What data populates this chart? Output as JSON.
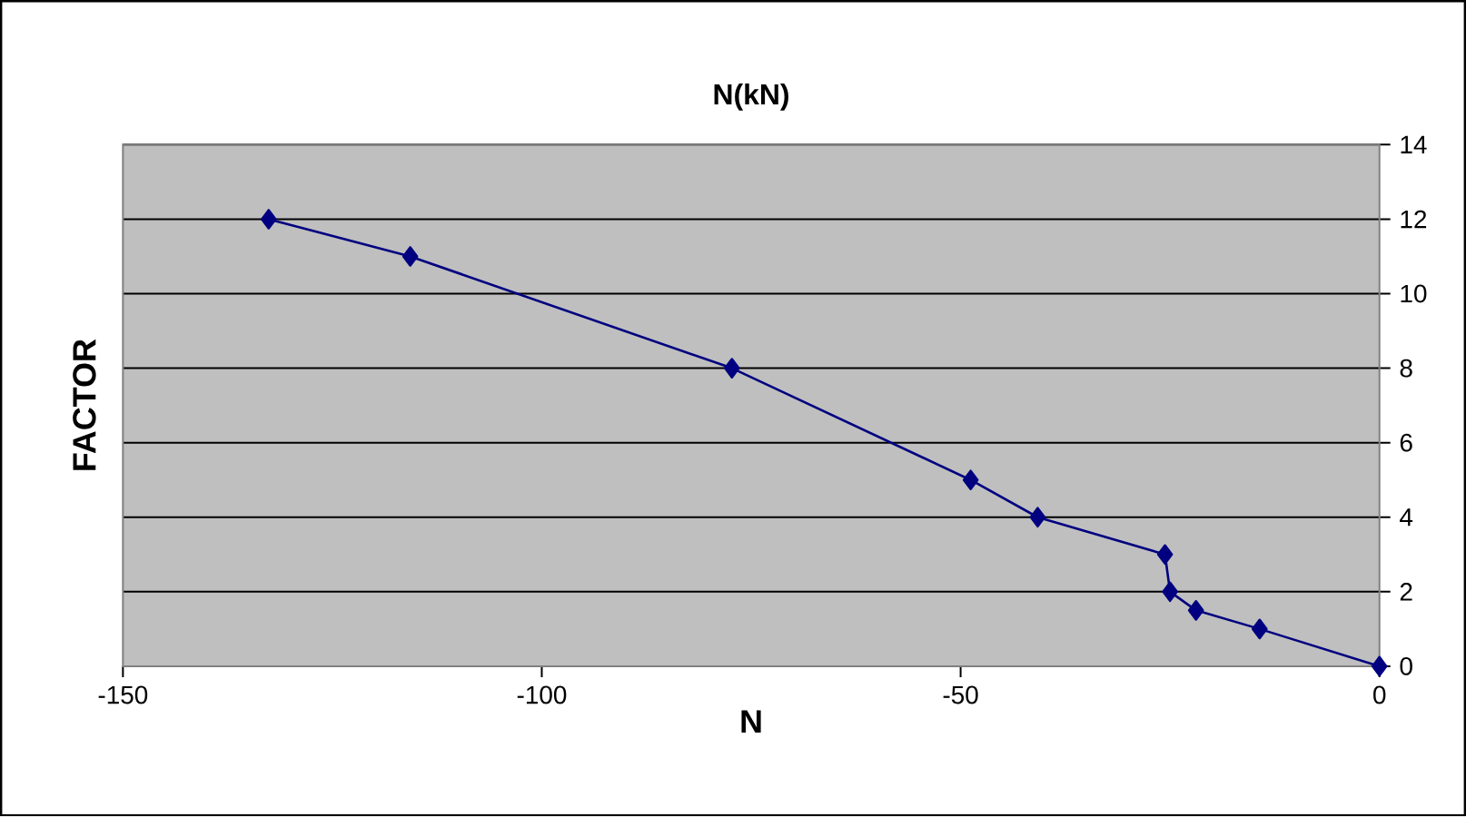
{
  "chart_data": {
    "type": "line",
    "title": "N(kN)",
    "xlabel": "N",
    "ylabel": "FACTOR",
    "x": [
      -132.6,
      -115.7,
      -77.3,
      -48.8,
      -40.8,
      -25.6,
      -25.0,
      -21.9,
      -14.3,
      0
    ],
    "values": [
      12,
      11,
      8,
      5,
      4,
      3,
      2,
      1.5,
      1,
      0
    ],
    "color": "#000080",
    "marker": "diamond",
    "line_style": "solid",
    "xlim": [
      -150,
      0
    ],
    "ylim": [
      0,
      14
    ],
    "xticks": [
      -150,
      -100,
      -50,
      0
    ],
    "yticks": [
      0,
      2,
      4,
      6,
      8,
      10,
      12,
      14
    ],
    "grid": "y"
  }
}
